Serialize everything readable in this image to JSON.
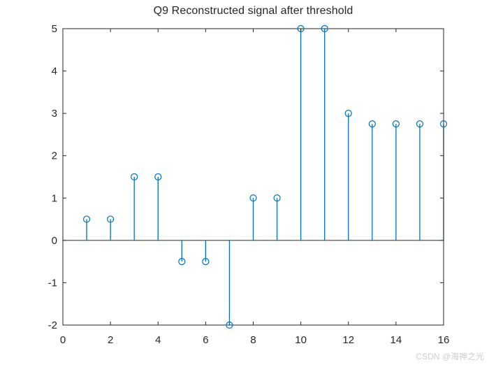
{
  "figure": {
    "background": "#ffffff"
  },
  "chart_data": {
    "type": "stem",
    "title": "Q9 Reconstructed signal after threshold",
    "xlabel": "",
    "ylabel": "",
    "x": [
      1,
      2,
      3,
      4,
      5,
      6,
      7,
      8,
      9,
      10,
      11,
      12,
      13,
      14,
      15,
      16
    ],
    "values": [
      0.5,
      0.5,
      1.5,
      1.5,
      -0.5,
      -0.5,
      -2,
      1,
      1,
      5,
      5,
      3,
      2.75,
      2.75,
      2.75,
      2.75
    ],
    "xlim": [
      0,
      16
    ],
    "ylim": [
      -2,
      5
    ],
    "xticks": [
      0,
      2,
      4,
      6,
      8,
      10,
      12,
      14,
      16
    ],
    "yticks": [
      -2,
      -1,
      0,
      1,
      2,
      3,
      4,
      5
    ],
    "baseline": 0,
    "grid": false,
    "marker": "circle-open",
    "stem_color": "#0072BD",
    "axis_color": "#262626",
    "baseline_color": "#262626"
  },
  "watermark": {
    "text": "CSDN @海神之光",
    "color": "#cdcdcd"
  }
}
